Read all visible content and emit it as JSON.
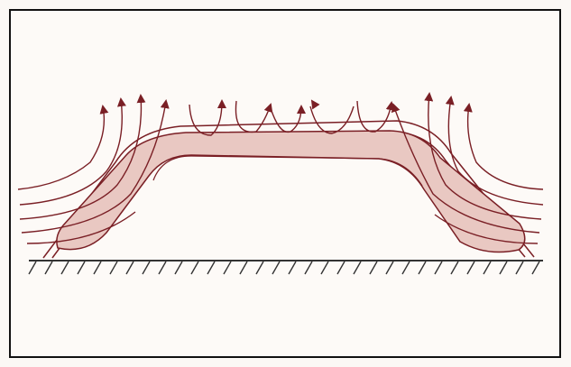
{
  "diagram": {
    "colors": {
      "line": "#7a1f25",
      "fill": "#e9c8c2",
      "ground": "#333333",
      "frame": "#111111"
    },
    "icons": [
      "arrow-up-icon"
    ]
  }
}
